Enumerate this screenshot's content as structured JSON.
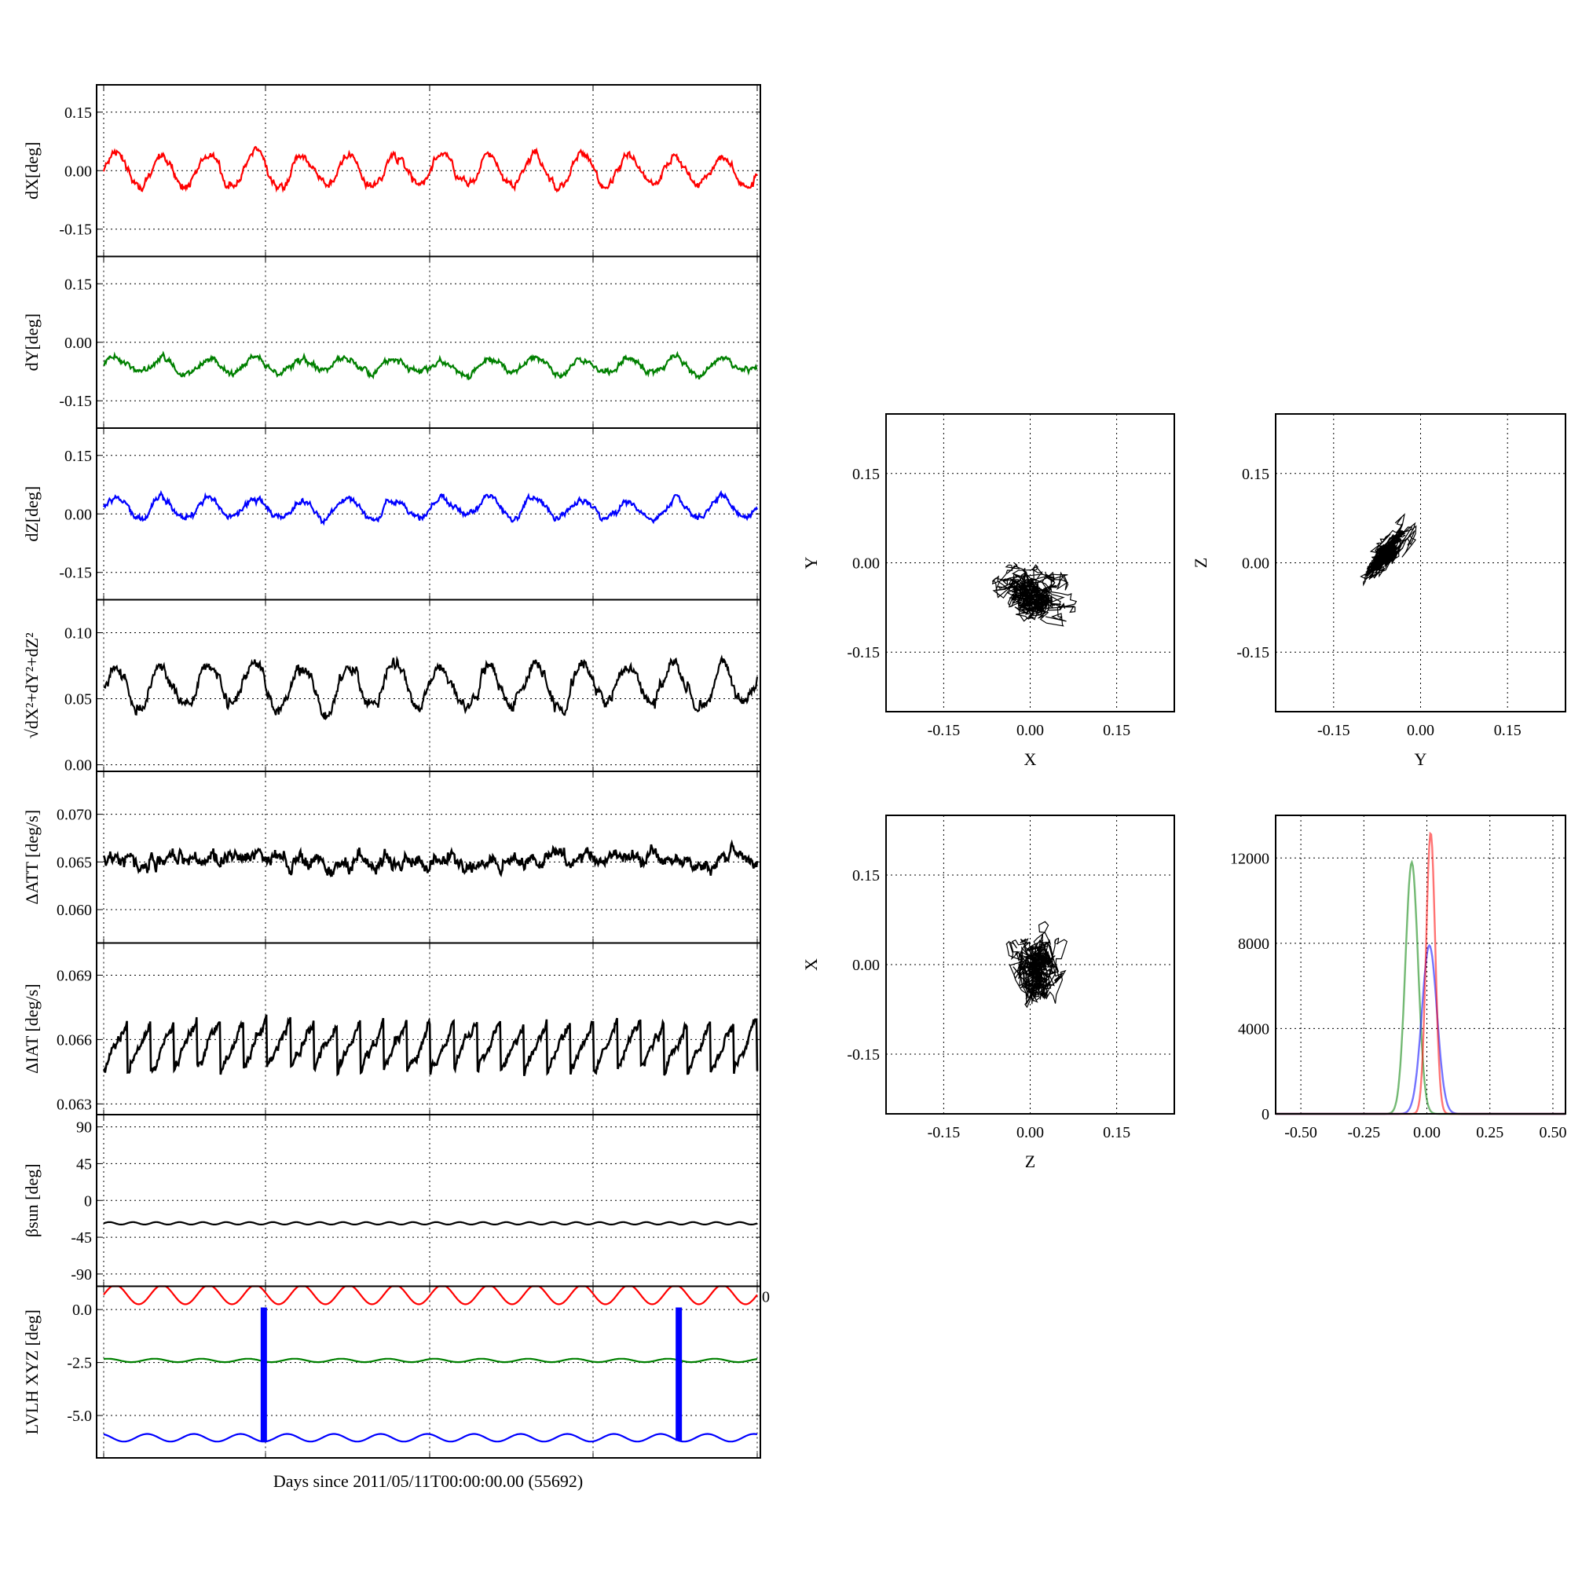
{
  "figure": {
    "xlabel": "Days since 2011/05/11T00:00:00.00 (55692)"
  },
  "chart_data": [
    {
      "type": "line",
      "id": "dx",
      "ylabel": "dX[deg]",
      "yticks": [
        "0.15",
        "0.00",
        "-0.15"
      ],
      "ylim": [
        -0.22,
        0.22
      ],
      "grid": true,
      "series": [
        {
          "color": "#ff0000",
          "baseline": 0.0,
          "oscillation": 0.04,
          "cycles": 14,
          "noise": 0.012
        }
      ]
    },
    {
      "type": "line",
      "id": "dy",
      "ylabel": "dY[deg]",
      "yticks": [
        "0.15",
        "0.00",
        "-0.15"
      ],
      "ylim": [
        -0.22,
        0.22
      ],
      "grid": true,
      "series": [
        {
          "color": "#008000",
          "baseline": -0.06,
          "oscillation": 0.02,
          "cycles": 14,
          "noise": 0.01
        }
      ]
    },
    {
      "type": "line",
      "id": "dz",
      "ylabel": "dZ[deg]",
      "yticks": [
        "0.15",
        "0.00",
        "-0.15"
      ],
      "ylim": [
        -0.22,
        0.22
      ],
      "grid": true,
      "series": [
        {
          "color": "#0000ff",
          "baseline": 0.015,
          "oscillation": 0.025,
          "cycles": 14,
          "noise": 0.01
        }
      ]
    },
    {
      "type": "line",
      "id": "mag",
      "ylabel": "√dX²+dY²+dZ²",
      "yticks": [
        "0.10",
        "0.05",
        "0.00"
      ],
      "ylim": [
        -0.005,
        0.125
      ],
      "grid": true,
      "series": [
        {
          "color": "#000000",
          "baseline": 0.06,
          "oscillation": 0.015,
          "cycles": 14,
          "noise": 0.006
        }
      ]
    },
    {
      "type": "line",
      "id": "datt",
      "ylabel": "ΔATT [deg/s]",
      "yticks": [
        "0.070",
        "0.065",
        "0.060"
      ],
      "ylim": [
        0.0565,
        0.0745
      ],
      "grid": true,
      "series": [
        {
          "color": "#000000",
          "baseline": 0.0652,
          "oscillation": 0.0,
          "cycles": 0,
          "noise": 0.0009
        }
      ]
    },
    {
      "type": "line",
      "id": "diat",
      "ylabel": "ΔIAT [deg/s]",
      "yticks": [
        "0.069",
        "0.066",
        "0.063"
      ],
      "ylim": [
        0.0625,
        0.0705
      ],
      "grid": true,
      "series": [
        {
          "color": "#000000",
          "baseline": 0.0657,
          "oscillation": 0.0012,
          "cycles": 28,
          "noise": 0.0003
        }
      ]
    },
    {
      "type": "line",
      "id": "beta",
      "ylabel": "βsun [deg]",
      "yticks": [
        "90",
        "45",
        "0",
        "-45",
        "-90"
      ],
      "ylim": [
        -105,
        105
      ],
      "grid": true,
      "series": [
        {
          "color": "#000000",
          "baseline": -28,
          "oscillation": 1.5,
          "cycles": 28,
          "noise": 0.0
        }
      ]
    },
    {
      "type": "line",
      "id": "lvlh",
      "ylabel": "LVLH XYZ [deg]",
      "yticks": [
        "0.0",
        "-2.5",
        "-5.0"
      ],
      "ylim": [
        -7.0,
        1.1
      ],
      "grid": true,
      "right_tick_label": "0",
      "series": [
        {
          "color": "#ff0000",
          "baseline": 0.7,
          "oscillation": 0.45,
          "cycles": 14,
          "noise": 0.0
        },
        {
          "color": "#008000",
          "baseline": -2.4,
          "oscillation": 0.08,
          "cycles": 14,
          "noise": 0.0
        },
        {
          "color": "#0000ff",
          "baseline": -6.05,
          "oscillation": 0.18,
          "cycles": 14,
          "noise": 0.0
        }
      ],
      "vertical_bars": [
        0.245,
        0.88
      ]
    },
    {
      "type": "scatter",
      "id": "xy",
      "xlabel": "X",
      "ylabel": "Y",
      "xticks": [
        "-0.15",
        "0.00",
        "0.15"
      ],
      "yticks": [
        "0.15",
        "0.00",
        "-0.15"
      ],
      "xlim": [
        -0.25,
        0.25
      ],
      "ylim": [
        -0.25,
        0.25
      ],
      "grid": true,
      "series": [
        {
          "color": "#000000",
          "center": [
            0.0,
            -0.05
          ],
          "spread": [
            0.05,
            0.035
          ],
          "tilt": 0
        }
      ]
    },
    {
      "type": "scatter",
      "id": "yz",
      "xlabel": "Y",
      "ylabel": "Z",
      "xticks": [
        "-0.15",
        "0.00",
        "0.15"
      ],
      "yticks": [
        "0.15",
        "0.00",
        "-0.15"
      ],
      "xlim": [
        -0.25,
        0.25
      ],
      "ylim": [
        -0.25,
        0.25
      ],
      "grid": true,
      "series": [
        {
          "color": "#000000",
          "center": [
            -0.06,
            0.015
          ],
          "spread": [
            0.045,
            0.016
          ],
          "tilt": 0.9
        }
      ]
    },
    {
      "type": "scatter",
      "id": "zx",
      "xlabel": "Z",
      "ylabel": "X",
      "xticks": [
        "-0.15",
        "0.00",
        "0.15"
      ],
      "yticks": [
        "0.15",
        "0.00",
        "-0.15"
      ],
      "xlim": [
        -0.25,
        0.25
      ],
      "ylim": [
        -0.25,
        0.25
      ],
      "grid": true,
      "series": [
        {
          "color": "#000000",
          "center": [
            0.015,
            0.0
          ],
          "spread": [
            0.035,
            0.05
          ],
          "tilt": 0
        }
      ]
    },
    {
      "type": "histogram",
      "id": "hist",
      "xticks": [
        "-0.50",
        "-0.25",
        "0.00",
        "0.25",
        "0.50"
      ],
      "yticks": [
        "12000",
        "8000",
        "4000",
        "0"
      ],
      "xlim": [
        -0.6,
        0.55
      ],
      "ylim": [
        0,
        14000
      ],
      "grid": true,
      "series": [
        {
          "color": "#008000",
          "peak": 11800,
          "center": -0.06,
          "width": 0.025
        },
        {
          "color": "#0000ff",
          "peak": 7900,
          "center": 0.01,
          "width": 0.03
        },
        {
          "color": "#ff0000",
          "peak": 13200,
          "center": 0.015,
          "width": 0.018
        }
      ]
    }
  ]
}
